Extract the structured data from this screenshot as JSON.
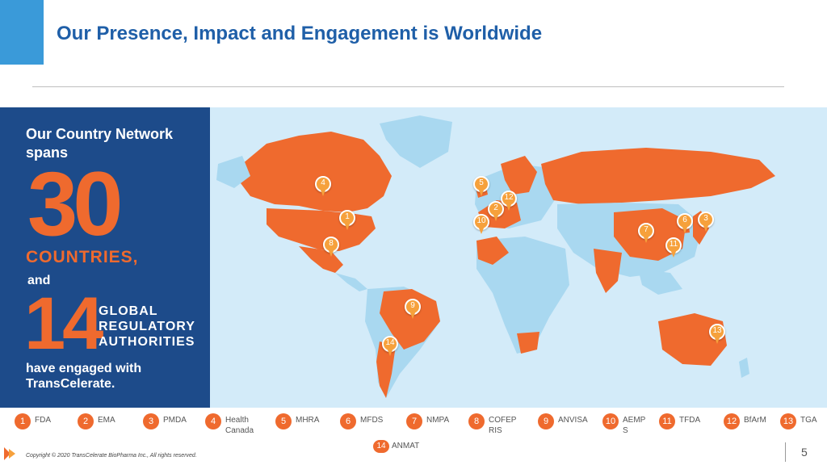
{
  "title": "Our Presence, Impact and Engagement is Worldwide",
  "panel": {
    "intro": "Our Country Network spans",
    "big_number": "30",
    "countries_label": "COUNTRIES,",
    "and": "and",
    "regulators_number": "14",
    "regulators_label": "GLOBAL REGULATORY AUTHORITIES",
    "engaged": "have engaged with TransCelerate."
  },
  "pins": [
    "1",
    "2",
    "3",
    "4",
    "5",
    "6",
    "7",
    "8",
    "9",
    "10",
    "11",
    "12",
    "13",
    "14"
  ],
  "legend": [
    {
      "num": "1",
      "label": "FDA"
    },
    {
      "num": "2",
      "label": "EMA"
    },
    {
      "num": "3",
      "label": "PMDA"
    },
    {
      "num": "4",
      "label": "Health Canada"
    },
    {
      "num": "5",
      "label": "MHRA"
    },
    {
      "num": "6",
      "label": "MFDS"
    },
    {
      "num": "7",
      "label": "NMPA"
    },
    {
      "num": "8",
      "label": "COFEPRIS"
    },
    {
      "num": "9",
      "label": "ANVISA"
    },
    {
      "num": "10",
      "label": "AEMPS"
    },
    {
      "num": "11",
      "label": "TFDA"
    },
    {
      "num": "12",
      "label": "BfArM"
    },
    {
      "num": "13",
      "label": "TGA"
    },
    {
      "num": "14",
      "label": "ANMAT"
    }
  ],
  "copyright": "Copyright © 2020 TransCelerate BioPharma Inc., All rights reserved.",
  "page_number": "5",
  "colors": {
    "accent": "#3a9ad9",
    "title": "#1f5fa8",
    "panel": "#1d4b8a",
    "highlight": "#ef6a2e",
    "ocean": "#d3ebf9",
    "land": "#a9d8f0",
    "pin": "#f6a13c"
  }
}
